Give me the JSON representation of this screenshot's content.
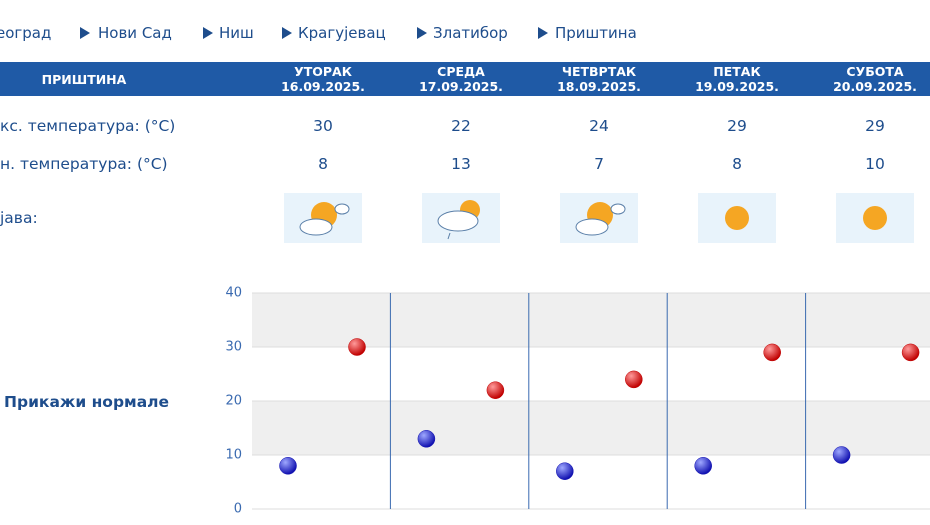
{
  "nav": [
    "еоград",
    "Нови Сад",
    "Ниш",
    "Крагујевац",
    "Златибор",
    "Приштина"
  ],
  "table": {
    "city": "ПРИШТИНА",
    "days": [
      {
        "name": "УТОРАК",
        "date": "16.09.2025."
      },
      {
        "name": "СРЕДА",
        "date": "17.09.2025."
      },
      {
        "name": "ЧЕТВРТАК",
        "date": "18.09.2025."
      },
      {
        "name": "ПЕТАК",
        "date": "19.09.2025."
      },
      {
        "name": "СУБОТА",
        "date": "20.09.2025."
      }
    ],
    "rows": [
      {
        "label": "кс. температура: (°C)",
        "values": [
          30,
          22,
          24,
          29,
          29
        ]
      },
      {
        "label": "н. температура: (°C)",
        "values": [
          8,
          13,
          7,
          8,
          10
        ]
      },
      {
        "label": "јава:"
      }
    ]
  },
  "toggle": "Прикажи нормале",
  "chart_data": {
    "type": "scatter",
    "ylim": [
      0,
      40
    ],
    "yticks": [
      0,
      10,
      20,
      30,
      40
    ],
    "grid": true,
    "series": [
      {
        "color": "#1010b0",
        "values": [
          8,
          13,
          7,
          8,
          10
        ]
      },
      {
        "color": "#c00000",
        "values": [
          30,
          22,
          24,
          29,
          29
        ]
      }
    ]
  }
}
